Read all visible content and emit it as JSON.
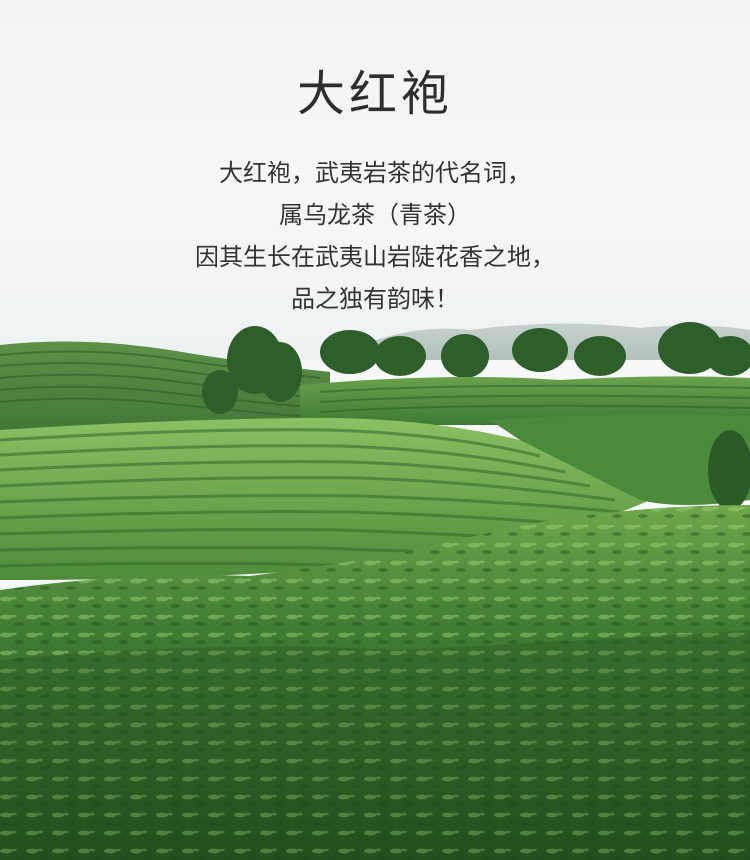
{
  "title": "大红袍",
  "lines": [
    "大红袍，武夷岩茶的代名词，",
    "属乌龙茶（青茶）",
    "因其生长在武夷山岩陡花香之地，",
    "品之独有韵味！"
  ],
  "colors": {
    "sky": "#f5f6f6",
    "text": "#333333",
    "tea_dark": "#2f6a2a",
    "tea_mid": "#4f8a3c",
    "tea_light": "#7fb55a"
  }
}
